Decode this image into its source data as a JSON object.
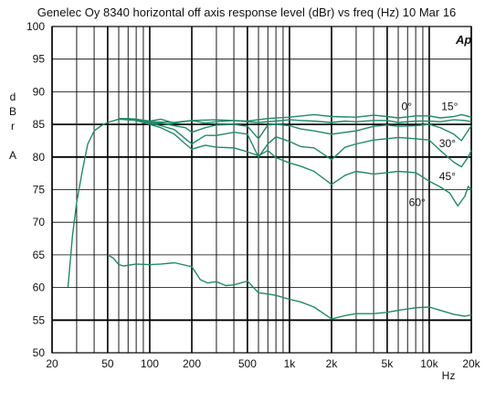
{
  "chart_data": {
    "type": "line",
    "title": "Genelec Oy 8340  horizontal off axis response level (dBr) vs freq (Hz) 10 Mar 16",
    "ylabel_lines": [
      "d",
      "B",
      "r",
      "A"
    ],
    "xlabel": "Hz",
    "logo": "Ap",
    "xscale": "log",
    "xlim": [
      20,
      20000
    ],
    "ylim": [
      50,
      100
    ],
    "grid": true,
    "x_ticks": [
      {
        "value": 20,
        "label": "20"
      },
      {
        "value": 50,
        "label": "50"
      },
      {
        "value": 100,
        "label": "100"
      },
      {
        "value": 200,
        "label": "200"
      },
      {
        "value": 500,
        "label": "500"
      },
      {
        "value": 1000,
        "label": "1k"
      },
      {
        "value": 2000,
        "label": "2k"
      },
      {
        "value": 5000,
        "label": "5k"
      },
      {
        "value": 10000,
        "label": "10k"
      },
      {
        "value": 20000,
        "label": "20k"
      }
    ],
    "y_ticks": [
      {
        "value": 100,
        "label": "100"
      },
      {
        "value": 95,
        "label": "95"
      },
      {
        "value": 90,
        "label": "90"
      },
      {
        "value": 85,
        "label": "85"
      },
      {
        "value": 80,
        "label": "80"
      },
      {
        "value": 75,
        "label": "75"
      },
      {
        "value": 70,
        "label": "70"
      },
      {
        "value": 65,
        "label": "65"
      },
      {
        "value": 60,
        "label": "60"
      },
      {
        "value": 55,
        "label": "55"
      },
      {
        "value": 50,
        "label": "50"
      }
    ],
    "line_color": "#1f8a6a",
    "series": [
      {
        "name": "0°",
        "x": [
          26,
          28,
          30,
          33,
          36,
          40,
          45,
          50,
          60,
          70,
          80,
          100,
          120,
          150,
          200,
          250,
          300,
          400,
          500,
          600,
          800,
          1000,
          1200,
          1500,
          2000,
          2500,
          3000,
          4000,
          5000,
          6000,
          8000,
          10000,
          12000,
          15000,
          18000,
          20000
        ],
        "y": [
          60,
          68,
          73,
          78,
          82,
          84,
          84.8,
          85.3,
          85.8,
          85.9,
          85.8,
          85.5,
          85.8,
          85.2,
          85.6,
          85.2,
          85.4,
          85.6,
          85.4,
          85.3,
          85.5,
          85.7,
          85.6,
          85.5,
          85.3,
          85.5,
          85.4,
          85.6,
          85.6,
          85.3,
          85.5,
          85.5,
          85.4,
          85.7,
          85.6,
          85.4
        ]
      },
      {
        "name": "15°",
        "x": [
          60,
          80,
          100,
          150,
          200,
          300,
          500,
          700,
          1000,
          1500,
          2000,
          3000,
          4000,
          5000,
          6000,
          8000,
          10000,
          12000,
          15000,
          17000,
          20000
        ],
        "y": [
          85.9,
          85.8,
          85.4,
          85.3,
          85.6,
          85.7,
          85.5,
          85.9,
          86.1,
          86.5,
          86.2,
          86.1,
          86.4,
          86.2,
          86.0,
          86.3,
          86.3,
          86.0,
          86.2,
          86.5,
          86.1
        ]
      },
      {
        "name": "30°",
        "x": [
          60,
          80,
          100,
          120,
          150,
          180,
          200,
          250,
          300,
          400,
          500,
          600,
          700,
          800,
          1000,
          1200,
          1500,
          2000,
          3000,
          4000,
          5000,
          6000,
          8000,
          10000,
          12000,
          15000,
          17000,
          20000
        ],
        "y": [
          85.9,
          85.8,
          85.3,
          85.2,
          84.8,
          84.5,
          83.8,
          84.5,
          84.9,
          85.0,
          84.7,
          82.8,
          84.9,
          85.0,
          84.8,
          84.3,
          84.0,
          83.5,
          84.0,
          84.7,
          84.9,
          84.7,
          84.8,
          85.0,
          84.5,
          83.5,
          82.5,
          84.8
        ]
      },
      {
        "name": "45°",
        "x": [
          60,
          80,
          100,
          120,
          150,
          180,
          200,
          250,
          300,
          400,
          500,
          600,
          700,
          800,
          1000,
          1200,
          1500,
          2000,
          2500,
          3000,
          4000,
          5000,
          6000,
          8000,
          10000,
          12000,
          15000,
          17000,
          19000,
          20000
        ],
        "y": [
          85.9,
          85.7,
          85.2,
          84.8,
          84.2,
          82.8,
          82.0,
          83.3,
          83.3,
          83.8,
          83.5,
          80.0,
          82.0,
          83.1,
          82.4,
          81.6,
          81.4,
          79.6,
          81.5,
          82.0,
          82.6,
          82.8,
          83.0,
          82.8,
          82.6,
          81.0,
          79.2,
          78.5,
          80.0,
          81.0
        ]
      },
      {
        "name": "60°",
        "x": [
          60,
          80,
          100,
          120,
          150,
          180,
          200,
          250,
          300,
          400,
          500,
          600,
          700,
          800,
          1000,
          1200,
          1500,
          2000,
          2500,
          3000,
          4000,
          5000,
          6000,
          8000,
          10000,
          12000,
          14000,
          16000,
          18000,
          19000,
          20000
        ],
        "y": [
          85.8,
          85.6,
          85.0,
          84.5,
          83.5,
          82.0,
          81.2,
          81.8,
          81.5,
          81.4,
          80.8,
          80.2,
          81.0,
          79.9,
          79.1,
          78.6,
          77.8,
          75.8,
          77.2,
          77.8,
          77.4,
          77.6,
          77.8,
          77.6,
          76.3,
          75.4,
          74.5,
          72.5,
          74.0,
          75.5,
          75.0
        ]
      },
      {
        "name": "",
        "x": [
          50,
          55,
          60,
          65,
          80,
          100,
          120,
          150,
          200,
          230,
          260,
          300,
          350,
          400,
          500,
          600,
          700,
          800,
          1000,
          1200,
          1500,
          2000,
          2500,
          3000,
          4000,
          5000,
          6000,
          8000,
          10000,
          12000,
          15000,
          18000,
          20000
        ],
        "y": [
          65,
          64.5,
          63.5,
          63.3,
          63.6,
          63.5,
          63.6,
          63.8,
          63.2,
          61.2,
          60.7,
          60.9,
          60.3,
          60.4,
          61.0,
          59.2,
          59.0,
          58.8,
          58.2,
          57.8,
          57.0,
          55.2,
          55.7,
          56.0,
          56.0,
          56.2,
          56.5,
          56.9,
          57.0,
          56.5,
          55.9,
          55.6,
          55.8
        ]
      }
    ],
    "annotations": [
      {
        "text": "0°",
        "x": 6900,
        "y": 87.2
      },
      {
        "text": "15°",
        "x": 14000,
        "y": 87.2
      },
      {
        "text": "30°",
        "x": 13500,
        "y": 81.5
      },
      {
        "text": "45°",
        "x": 13500,
        "y": 76.5
      },
      {
        "text": "60°",
        "x": 8200,
        "y": 72.5
      }
    ]
  }
}
